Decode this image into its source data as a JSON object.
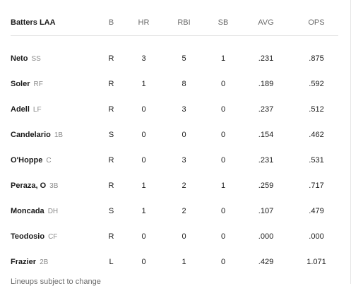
{
  "table": {
    "header": {
      "name": "Batters LAA",
      "b": "B",
      "hr": "HR",
      "rbi": "RBI",
      "sb": "SB",
      "avg": "AVG",
      "ops": "OPS"
    },
    "rows": [
      {
        "name": "Neto",
        "pos": "SS",
        "b": "R",
        "hr": "3",
        "rbi": "5",
        "sb": "1",
        "avg": ".231",
        "ops": ".875"
      },
      {
        "name": "Soler",
        "pos": "RF",
        "b": "R",
        "hr": "1",
        "rbi": "8",
        "sb": "0",
        "avg": ".189",
        "ops": ".592"
      },
      {
        "name": "Adell",
        "pos": "LF",
        "b": "R",
        "hr": "0",
        "rbi": "3",
        "sb": "0",
        "avg": ".237",
        "ops": ".512"
      },
      {
        "name": "Candelario",
        "pos": "1B",
        "b": "S",
        "hr": "0",
        "rbi": "0",
        "sb": "0",
        "avg": ".154",
        "ops": ".462"
      },
      {
        "name": "O'Hoppe",
        "pos": "C",
        "b": "R",
        "hr": "0",
        "rbi": "3",
        "sb": "0",
        "avg": ".231",
        "ops": ".531"
      },
      {
        "name": "Peraza, O",
        "pos": "3B",
        "b": "R",
        "hr": "1",
        "rbi": "2",
        "sb": "1",
        "avg": ".259",
        "ops": ".717"
      },
      {
        "name": "Moncada",
        "pos": "DH",
        "b": "S",
        "hr": "1",
        "rbi": "2",
        "sb": "0",
        "avg": ".107",
        "ops": ".479"
      },
      {
        "name": "Teodosio",
        "pos": "CF",
        "b": "R",
        "hr": "0",
        "rbi": "0",
        "sb": "0",
        "avg": ".000",
        "ops": ".000"
      },
      {
        "name": "Frazier",
        "pos": "2B",
        "b": "L",
        "hr": "0",
        "rbi": "1",
        "sb": "0",
        "avg": ".429",
        "ops": "1.071"
      }
    ]
  },
  "footnote": "Lineups subject to change"
}
